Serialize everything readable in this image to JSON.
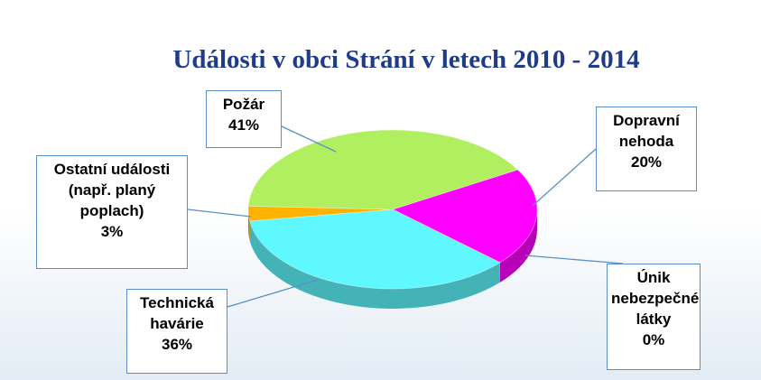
{
  "chart_data": {
    "type": "pie3d",
    "title": "Události v obci Strání v letech 2010 - 2014",
    "categories": [
      "Dopravní nehoda",
      "Únik nebezpečné látky",
      "Technická havárie",
      "Ostatní události (např. planý poplach)",
      "Požár"
    ],
    "values": [
      20,
      0,
      36,
      3,
      41
    ],
    "value_labels": [
      "20%",
      "0%",
      "36%",
      "3%",
      "41%"
    ],
    "colors": [
      "#ff00ff",
      "#9933cc",
      "#5ff8ff",
      "#ffb300",
      "#b0f060"
    ]
  }
}
